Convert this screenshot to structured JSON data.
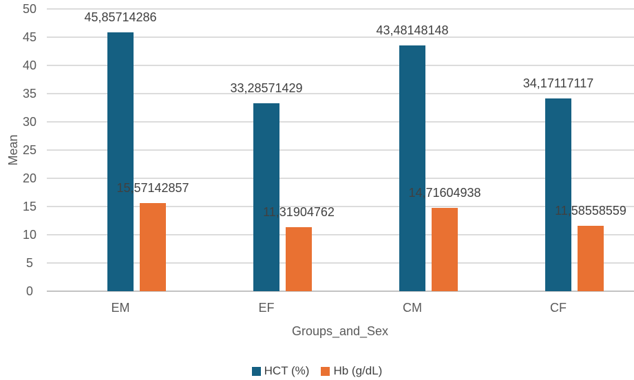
{
  "chart_data": {
    "type": "bar",
    "title": "",
    "xlabel": "Groups_and_Sex",
    "ylabel": "Mean",
    "categories": [
      "EM",
      "EF",
      "CM",
      "CF"
    ],
    "series": [
      {
        "name": "HCT (%)",
        "color": "#156082",
        "values": [
          45.85714286,
          33.28571429,
          43.48148148,
          34.17117117
        ],
        "labels": [
          "45,85714286",
          "33,28571429",
          "43,48148148",
          "34,17117117"
        ]
      },
      {
        "name": "Hb (g/dL)",
        "color": "#E97132",
        "values": [
          15.57142857,
          11.31904762,
          14.71604938,
          11.58558559
        ],
        "labels": [
          "15,57142857",
          "11,31904762",
          "14,71604938",
          "11,58558559"
        ]
      }
    ],
    "ylim": [
      0,
      50
    ],
    "ytick_step": 5,
    "yticks": [
      "0",
      "5",
      "10",
      "15",
      "20",
      "25",
      "30",
      "35",
      "40",
      "45",
      "50"
    ],
    "grid": true,
    "legend_position": "bottom"
  },
  "colors": {
    "gridline": "#dcdcdc",
    "axis_line": "#c3c3c3",
    "tick_text": "#595959",
    "data_label_text": "#404040"
  }
}
